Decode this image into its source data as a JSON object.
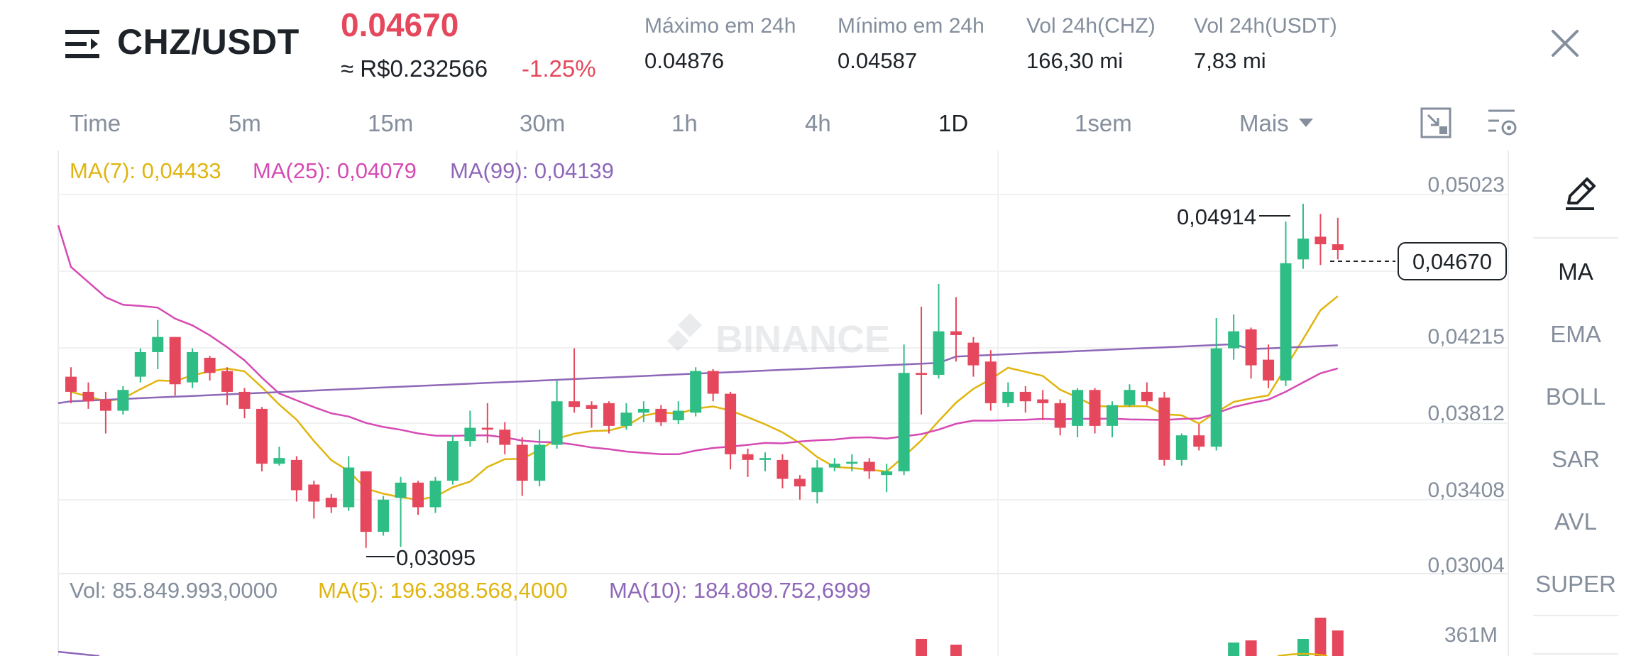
{
  "header": {
    "pair": "CHZ/USDT",
    "last_price": "0.04670",
    "fiat_approx": "≈ R$0.232566",
    "change_pct": "-1.25%",
    "stats": [
      {
        "label": "Máximo em 24h",
        "value": "0.04876"
      },
      {
        "label": "Mínimo em 24h",
        "value": "0.04587"
      },
      {
        "label": "Vol 24h(CHZ)",
        "value": "166,30 mi"
      },
      {
        "label": "Vol 24h(USDT)",
        "value": "7,83 mi"
      }
    ]
  },
  "intervals": {
    "tabs": [
      "Time",
      "5m",
      "15m",
      "30m",
      "1h",
      "4h",
      "1D",
      "1sem"
    ],
    "more_label": "Mais",
    "active": "1D"
  },
  "indicators_panel": {
    "items": [
      "MA",
      "EMA",
      "BOLL",
      "SAR",
      "AVL",
      "SUPER"
    ],
    "active": "MA"
  },
  "price_chart": {
    "ma_legend": [
      {
        "label": "MA(7): 0,04433",
        "color": "#e0b50f"
      },
      {
        "label": "MA(25): 0,04079",
        "color": "#d64ab3"
      },
      {
        "label": "MA(99): 0,04139",
        "color": "#8e67b8"
      }
    ],
    "y_tick_labels": [
      "0,05023",
      "0,04215",
      "0,03812",
      "0,03408",
      "0,03004"
    ],
    "high_marker": "0,04914",
    "low_marker": "0,03095",
    "current_price_tag": "0,04670",
    "watermark": "BINANCE"
  },
  "volume_chart": {
    "vol_label": "Vol: 85.849.993,0000",
    "ma5_label": "MA(5): 196.388.568,4000",
    "ma10_label": "MA(10): 184.809.752,6999",
    "ma5_color": "#e0b50f",
    "ma10_color": "#8e67b8",
    "y_tick_label": "361M"
  },
  "colors": {
    "up": "#2ebd85",
    "down": "#e5485c",
    "ma7": "#e0b50f",
    "ma25": "#d64ab3",
    "ma99": "#8e67b8"
  },
  "chart_data": {
    "type": "candlestick",
    "y_axis_ticks": [
      0.05023,
      0.04215,
      0.03812,
      0.03408,
      0.03004
    ],
    "candles": [
      {
        "o": 0.04,
        "c": 0.0392,
        "h": 0.0405,
        "l": 0.0386
      },
      {
        "o": 0.0392,
        "c": 0.0387,
        "h": 0.0397,
        "l": 0.0383
      },
      {
        "o": 0.0388,
        "c": 0.0382,
        "h": 0.0392,
        "l": 0.037
      },
      {
        "o": 0.0382,
        "c": 0.0393,
        "h": 0.0395,
        "l": 0.038
      },
      {
        "o": 0.04,
        "c": 0.0413,
        "h": 0.0415,
        "l": 0.0397
      },
      {
        "o": 0.0413,
        "c": 0.0421,
        "h": 0.043,
        "l": 0.0404
      },
      {
        "o": 0.0421,
        "c": 0.0396,
        "h": 0.0421,
        "l": 0.039
      },
      {
        "o": 0.0397,
        "c": 0.0413,
        "h": 0.0415,
        "l": 0.0394
      },
      {
        "o": 0.041,
        "c": 0.0402,
        "h": 0.0411,
        "l": 0.0398
      },
      {
        "o": 0.0403,
        "c": 0.0392,
        "h": 0.0405,
        "l": 0.0385
      },
      {
        "o": 0.0392,
        "c": 0.0383,
        "h": 0.0394,
        "l": 0.0378
      },
      {
        "o": 0.0383,
        "c": 0.0354,
        "h": 0.0384,
        "l": 0.035
      },
      {
        "o": 0.0354,
        "c": 0.0357,
        "h": 0.0363,
        "l": 0.0353
      },
      {
        "o": 0.0356,
        "c": 0.034,
        "h": 0.0358,
        "l": 0.0334
      },
      {
        "o": 0.0343,
        "c": 0.0334,
        "h": 0.0345,
        "l": 0.0325
      },
      {
        "o": 0.0336,
        "c": 0.0331,
        "h": 0.0338,
        "l": 0.0328
      },
      {
        "o": 0.0331,
        "c": 0.0352,
        "h": 0.0358,
        "l": 0.0329
      },
      {
        "o": 0.035,
        "c": 0.0318,
        "h": 0.035,
        "l": 0.03095
      },
      {
        "o": 0.0318,
        "c": 0.0335,
        "h": 0.0337,
        "l": 0.0316
      },
      {
        "o": 0.0336,
        "c": 0.0344,
        "h": 0.0347,
        "l": 0.031
      },
      {
        "o": 0.0344,
        "c": 0.0331,
        "h": 0.0345,
        "l": 0.0327
      },
      {
        "o": 0.0331,
        "c": 0.0345,
        "h": 0.0347,
        "l": 0.0328
      },
      {
        "o": 0.0345,
        "c": 0.0366,
        "h": 0.0369,
        "l": 0.0343
      },
      {
        "o": 0.0366,
        "c": 0.0373,
        "h": 0.0382,
        "l": 0.0363
      },
      {
        "o": 0.0373,
        "c": 0.0372,
        "h": 0.0386,
        "l": 0.0365
      },
      {
        "o": 0.0372,
        "c": 0.0364,
        "h": 0.0376,
        "l": 0.0359
      },
      {
        "o": 0.0364,
        "c": 0.0345,
        "h": 0.0368,
        "l": 0.0337
      },
      {
        "o": 0.0345,
        "c": 0.0364,
        "h": 0.0372,
        "l": 0.0342
      },
      {
        "o": 0.0364,
        "c": 0.0387,
        "h": 0.0398,
        "l": 0.0362
      },
      {
        "o": 0.0387,
        "c": 0.0384,
        "h": 0.0415,
        "l": 0.0381
      },
      {
        "o": 0.0385,
        "c": 0.0383,
        "h": 0.0387,
        "l": 0.0373
      },
      {
        "o": 0.0386,
        "c": 0.0374,
        "h": 0.0387,
        "l": 0.037
      },
      {
        "o": 0.0374,
        "c": 0.0381,
        "h": 0.0386,
        "l": 0.0372
      },
      {
        "o": 0.0381,
        "c": 0.0383,
        "h": 0.0387,
        "l": 0.0376
      },
      {
        "o": 0.0383,
        "c": 0.0376,
        "h": 0.0385,
        "l": 0.0374
      },
      {
        "o": 0.0377,
        "c": 0.0382,
        "h": 0.0387,
        "l": 0.0375
      },
      {
        "o": 0.0381,
        "c": 0.0403,
        "h": 0.0405,
        "l": 0.0379
      },
      {
        "o": 0.0403,
        "c": 0.0391,
        "h": 0.0404,
        "l": 0.0387
      },
      {
        "o": 0.0391,
        "c": 0.0359,
        "h": 0.0392,
        "l": 0.0351
      },
      {
        "o": 0.0359,
        "c": 0.0356,
        "h": 0.0362,
        "l": 0.0347
      },
      {
        "o": 0.0356,
        "c": 0.0357,
        "h": 0.036,
        "l": 0.035
      },
      {
        "o": 0.0356,
        "c": 0.0346,
        "h": 0.0359,
        "l": 0.0341
      },
      {
        "o": 0.0346,
        "c": 0.0342,
        "h": 0.0348,
        "l": 0.0335
      },
      {
        "o": 0.0339,
        "c": 0.0352,
        "h": 0.0356,
        "l": 0.0333
      },
      {
        "o": 0.0352,
        "c": 0.0354,
        "h": 0.0357,
        "l": 0.035
      },
      {
        "o": 0.0354,
        "c": 0.0355,
        "h": 0.0359,
        "l": 0.035
      },
      {
        "o": 0.0355,
        "c": 0.035,
        "h": 0.0357,
        "l": 0.0346
      },
      {
        "o": 0.0348,
        "c": 0.035,
        "h": 0.0354,
        "l": 0.0339
      },
      {
        "o": 0.035,
        "c": 0.0402,
        "h": 0.0417,
        "l": 0.0348
      },
      {
        "o": 0.0402,
        "c": 0.0401,
        "h": 0.0437,
        "l": 0.038
      },
      {
        "o": 0.0401,
        "c": 0.0424,
        "h": 0.0449,
        "l": 0.0399
      },
      {
        "o": 0.0424,
        "c": 0.0422,
        "h": 0.0442,
        "l": 0.0408
      },
      {
        "o": 0.0418,
        "c": 0.0406,
        "h": 0.0421,
        "l": 0.04
      },
      {
        "o": 0.0408,
        "c": 0.0386,
        "h": 0.0414,
        "l": 0.0382
      },
      {
        "o": 0.0386,
        "c": 0.0392,
        "h": 0.0397,
        "l": 0.0384
      },
      {
        "o": 0.0392,
        "c": 0.0387,
        "h": 0.0395,
        "l": 0.0381
      },
      {
        "o": 0.0388,
        "c": 0.0386,
        "h": 0.0393,
        "l": 0.0377
      },
      {
        "o": 0.0386,
        "c": 0.0373,
        "h": 0.0388,
        "l": 0.0369
      },
      {
        "o": 0.0374,
        "c": 0.0393,
        "h": 0.0394,
        "l": 0.0368
      },
      {
        "o": 0.0393,
        "c": 0.0374,
        "h": 0.0394,
        "l": 0.037
      },
      {
        "o": 0.0374,
        "c": 0.0385,
        "h": 0.0387,
        "l": 0.0368
      },
      {
        "o": 0.0385,
        "c": 0.0393,
        "h": 0.0396,
        "l": 0.0384
      },
      {
        "o": 0.0392,
        "c": 0.0387,
        "h": 0.0397,
        "l": 0.0385
      },
      {
        "o": 0.0389,
        "c": 0.0356,
        "h": 0.0392,
        "l": 0.0353
      },
      {
        "o": 0.0356,
        "c": 0.0369,
        "h": 0.037,
        "l": 0.0353
      },
      {
        "o": 0.0369,
        "c": 0.0363,
        "h": 0.0375,
        "l": 0.0361
      },
      {
        "o": 0.0363,
        "c": 0.0415,
        "h": 0.0431,
        "l": 0.0361
      },
      {
        "o": 0.0415,
        "c": 0.0424,
        "h": 0.0433,
        "l": 0.0409
      },
      {
        "o": 0.0425,
        "c": 0.0406,
        "h": 0.0426,
        "l": 0.0399
      },
      {
        "o": 0.0409,
        "c": 0.0398,
        "h": 0.0417,
        "l": 0.0394
      },
      {
        "o": 0.0398,
        "c": 0.046,
        "h": 0.0482,
        "l": 0.0395
      },
      {
        "o": 0.0462,
        "c": 0.0473,
        "h": 0.04914,
        "l": 0.0457
      },
      {
        "o": 0.0474,
        "c": 0.047,
        "h": 0.0486,
        "l": 0.0459
      },
      {
        "o": 0.047,
        "c": 0.0467,
        "h": 0.0484,
        "l": 0.0462
      }
    ]
  }
}
